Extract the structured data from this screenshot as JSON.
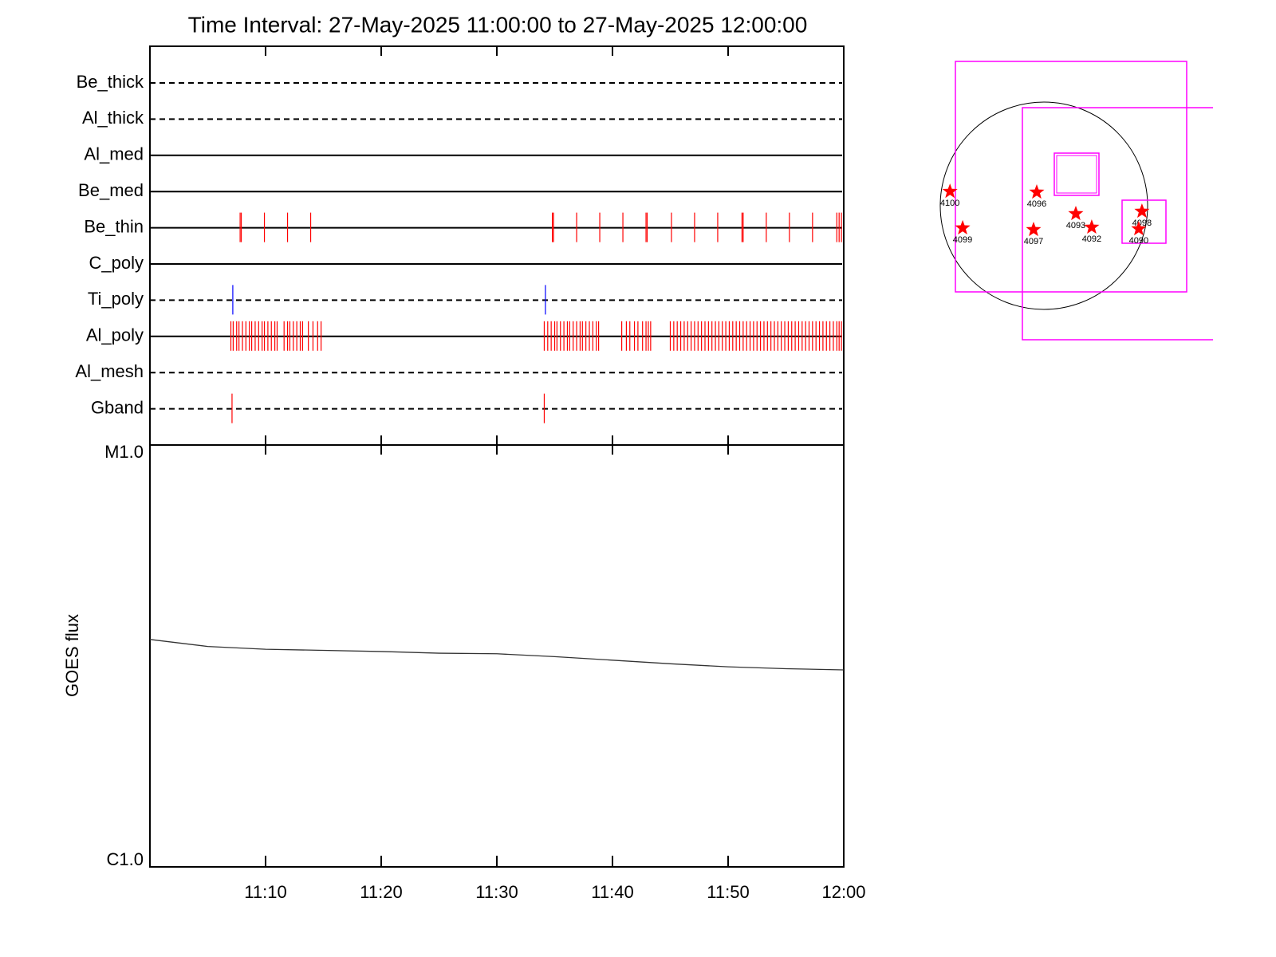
{
  "chart_data": [
    {
      "type": "timeline",
      "title": "Time Interval: 27-May-2025 11:00:00 to 27-May-2025 12:00:00",
      "xlim": [
        "11:00:00",
        "12:00:00"
      ],
      "series": [
        {
          "name": "Be_thick",
          "style": "dashed",
          "x": []
        },
        {
          "name": "Al_thick",
          "style": "dashed",
          "x": []
        },
        {
          "name": "Al_med",
          "style": "solid",
          "x": []
        },
        {
          "name": "Be_med",
          "style": "solid",
          "x": []
        },
        {
          "name": "Be_thin",
          "style": "solid",
          "color": "#ff0000",
          "x": [
            "11:07:48",
            "11:07:54",
            "11:09:54",
            "11:11:54",
            "11:13:54",
            "11:34:48",
            "11:34:54",
            "11:36:54",
            "11:38:54",
            "11:40:54",
            "11:42:54",
            "11:43:00",
            "11:45:06",
            "11:47:06",
            "11:49:06",
            "11:51:12",
            "11:51:18",
            "11:53:18",
            "11:55:18",
            "11:57:18",
            "11:59:24",
            "11:59:36",
            "11:59:48"
          ]
        },
        {
          "name": "C_poly",
          "style": "solid",
          "x": []
        },
        {
          "name": "Ti_poly",
          "style": "dashed",
          "color": "#0000ff",
          "x": [
            "11:07:10",
            "11:34:12"
          ]
        },
        {
          "name": "Al_poly",
          "style": "solid",
          "color": "#ff0000",
          "x": [
            "11:07:00",
            "11:07:12",
            "11:07:30",
            "11:07:42",
            "11:08:00",
            "11:08:18",
            "11:08:36",
            "11:08:48",
            "11:09:06",
            "11:09:24",
            "11:09:42",
            "11:09:54",
            "11:10:12",
            "11:10:30",
            "11:10:48",
            "11:11:00",
            "11:11:36",
            "11:11:54",
            "11:12:06",
            "11:12:24",
            "11:12:42",
            "11:13:00",
            "11:13:12",
            "11:13:42",
            "11:14:06",
            "11:14:30",
            "11:14:48",
            "11:34:06",
            "11:34:24",
            "11:34:42",
            "11:35:00",
            "11:35:12",
            "11:35:30",
            "11:35:48",
            "11:36:06",
            "11:36:18",
            "11:36:36",
            "11:36:54",
            "11:37:12",
            "11:37:24",
            "11:37:42",
            "11:38:00",
            "11:38:18",
            "11:38:36",
            "11:38:48",
            "11:40:48",
            "11:41:12",
            "11:41:30",
            "11:41:54",
            "11:42:12",
            "11:42:36",
            "11:42:54",
            "11:43:06",
            "11:43:18",
            "11:45:00",
            "11:45:18",
            "11:45:36",
            "11:45:54",
            "11:46:12",
            "11:46:30",
            "11:46:48",
            "11:47:06",
            "11:47:24",
            "11:47:42",
            "11:48:00",
            "11:48:18",
            "11:48:36",
            "11:48:54",
            "11:49:12",
            "11:49:30",
            "11:49:48",
            "11:50:06",
            "11:50:24",
            "11:50:42",
            "11:51:00",
            "11:51:18",
            "11:51:36",
            "11:51:54",
            "11:52:12",
            "11:52:30",
            "11:52:48",
            "11:53:06",
            "11:53:24",
            "11:53:42",
            "11:54:00",
            "11:54:18",
            "11:54:36",
            "11:54:54",
            "11:55:12",
            "11:55:30",
            "11:55:48",
            "11:56:06",
            "11:56:24",
            "11:56:42",
            "11:57:00",
            "11:57:18",
            "11:57:36",
            "11:57:54",
            "11:58:12",
            "11:58:30",
            "11:58:48",
            "11:59:06",
            "11:59:24",
            "11:59:36",
            "11:59:48"
          ]
        },
        {
          "name": "Al_mesh",
          "style": "dashed",
          "x": []
        },
        {
          "name": "Gband",
          "style": "dashed",
          "color": "#ff0000",
          "x": [
            "11:07:06",
            "11:34:06"
          ]
        }
      ]
    },
    {
      "type": "line",
      "ylabel": "GOES flux",
      "log": true,
      "xlim": [
        "11:00",
        "12:00"
      ],
      "xticks": [
        "11:10",
        "11:20",
        "11:30",
        "11:40",
        "11:50",
        "12:00"
      ],
      "ylim": [
        1e-06,
        1e-05
      ],
      "yticks": [
        {
          "value": 1e-06,
          "label": "C1.0"
        },
        {
          "value": 1e-05,
          "label": "M1.0"
        }
      ],
      "color": "#333333",
      "x": [
        "11:00",
        "11:05",
        "11:10",
        "11:15",
        "11:20",
        "11:25",
        "11:30",
        "11:35",
        "11:40",
        "11:45",
        "11:50",
        "11:55",
        "12:00"
      ],
      "values": [
        3.46e-06,
        3.33e-06,
        3.28e-06,
        3.26e-06,
        3.24e-06,
        3.21e-06,
        3.2e-06,
        3.15e-06,
        3.09e-06,
        3.03e-06,
        2.98e-06,
        2.95e-06,
        2.93e-06
      ]
    },
    {
      "type": "map",
      "color": "#ff0000",
      "points": [
        {
          "label": "4100",
          "x": -861,
          "y": 131
        },
        {
          "label": "4099",
          "x": -745,
          "y": -204
        },
        {
          "label": "4096",
          "x": -66,
          "y": 124
        },
        {
          "label": "4097",
          "x": -95,
          "y": -219
        },
        {
          "label": "4093",
          "x": 292,
          "y": -73
        },
        {
          "label": "4092",
          "x": 438,
          "y": -197
        },
        {
          "label": "4098",
          "x": 898,
          "y": -51
        },
        {
          "label": "4090",
          "x": 869,
          "y": -212
        }
      ]
    }
  ]
}
